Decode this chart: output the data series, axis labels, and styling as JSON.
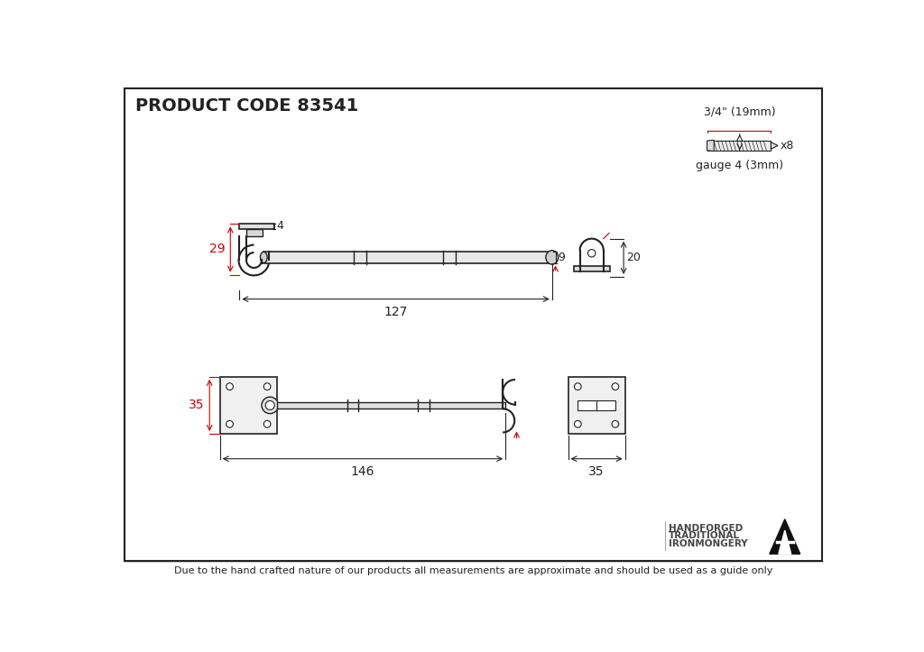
{
  "title": "PRODUCT CODE 83541",
  "background_color": "#ffffff",
  "line_color": "#222222",
  "dim_color": "#cc0000",
  "footer_text": "Due to the hand crafted nature of our products all measurements are approximate and should be used as a guide only",
  "screw_label_top": "3/4\" (19mm)",
  "screw_label_bottom": "gauge 4 (3mm)",
  "screw_x8": "x8",
  "brand_line1": "HANDFORGED",
  "brand_line2": "TRADITIONAL",
  "brand_line3": "IRONMONGERY",
  "dim_top_width": "127",
  "dim_top_height": "29",
  "dim_top_tail": "4",
  "dim_top_eye": "9",
  "dim_top_keep": "20",
  "dim_bot_width": "146",
  "dim_bot_height": "35",
  "dim_bot_keep": "35"
}
